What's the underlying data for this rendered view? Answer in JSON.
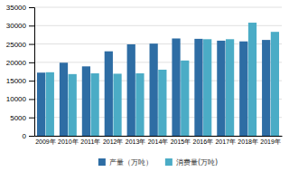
{
  "chart_data": {
    "type": "bar",
    "categories": [
      "2009年",
      "2010年",
      "2011年",
      "2012年",
      "2013年",
      "2014年",
      "2015年",
      "2016年",
      "2017年",
      "2018年",
      "2019年"
    ],
    "series": [
      {
        "name": "产量（万吨）",
        "color": "#2e6da4",
        "values": [
          17200,
          19900,
          18900,
          23000,
          24900,
          25100,
          26500,
          26400,
          25900,
          25700,
          26100
        ]
      },
      {
        "name": "消费量(万吨)",
        "color": "#4bacc6",
        "values": [
          17300,
          16800,
          17000,
          16900,
          17000,
          18000,
          20500,
          26300,
          26300,
          30800,
          28300
        ]
      }
    ],
    "ylim": [
      0,
      35000
    ],
    "yticks": [
      0,
      5000,
      10000,
      15000,
      20000,
      25000,
      30000,
      35000
    ],
    "grid": true,
    "legend": "bottom"
  }
}
